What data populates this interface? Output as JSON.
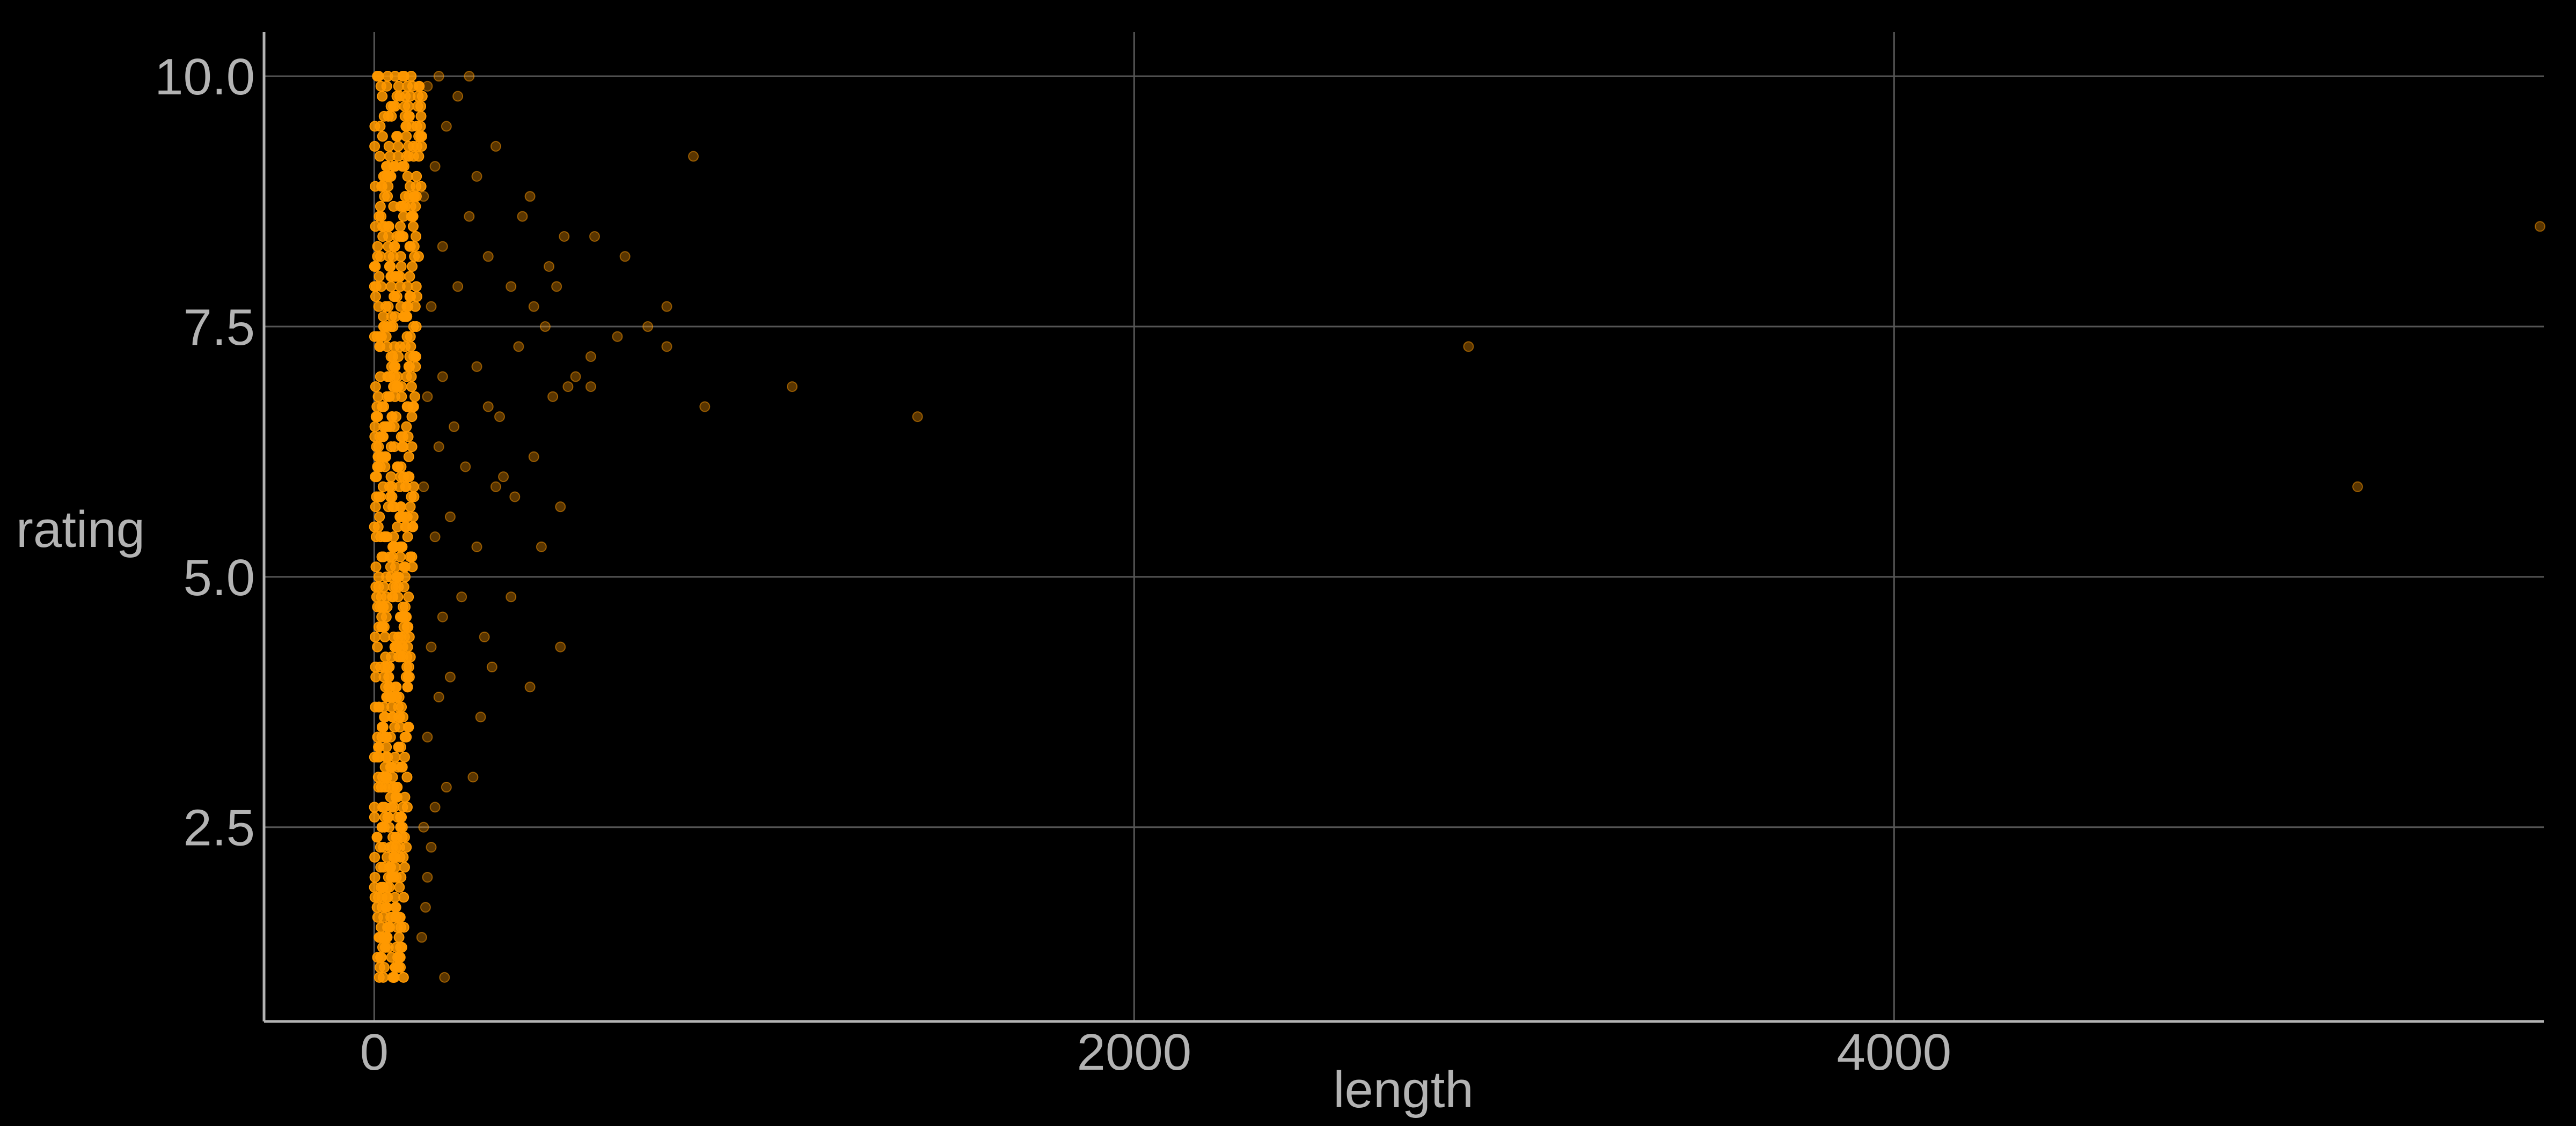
{
  "chart_data": {
    "type": "scatter",
    "title": "",
    "xlabel": "length",
    "ylabel": "rating",
    "xlim": [
      -290,
      5710
    ],
    "ylim": [
      0.56,
      10.44
    ],
    "x_ticks": [
      0,
      2000,
      4000
    ],
    "x_tick_labels": [
      "0",
      "2000",
      "4000"
    ],
    "y_ticks": [
      2.5,
      5.0,
      7.5,
      10.0
    ],
    "y_tick_labels": [
      "2.5",
      "5.0",
      "7.5",
      "10.0"
    ],
    "grid": true,
    "legend": "none",
    "colors": {
      "background": "#000000",
      "point": "#ff9900",
      "grid": "#555555",
      "axis_line": "#b3b3b3",
      "text": "#b3b3b3"
    },
    "dense_band": {
      "description_free": true,
      "x_range": [
        0,
        130
      ],
      "y_range": [
        1.0,
        10.0
      ],
      "y_step": 0.1
    },
    "points": [
      [
        5700,
        8.5
      ],
      [
        5220,
        5.9
      ],
      [
        2880,
        7.3
      ],
      [
        1430,
        6.6
      ],
      [
        1100,
        6.9
      ],
      [
        870,
        6.7
      ],
      [
        840,
        9.2
      ],
      [
        770,
        7.7
      ],
      [
        770,
        7.3
      ],
      [
        720,
        7.5
      ],
      [
        660,
        8.2
      ],
      [
        640,
        7.4
      ],
      [
        580,
        8.4
      ],
      [
        570,
        7.2
      ],
      [
        570,
        6.9
      ],
      [
        530,
        7.0
      ],
      [
        510,
        6.9
      ],
      [
        490,
        5.7
      ],
      [
        490,
        4.3
      ],
      [
        500,
        8.4
      ],
      [
        480,
        7.9
      ],
      [
        470,
        6.8
      ],
      [
        460,
        8.1
      ],
      [
        450,
        7.5
      ],
      [
        440,
        5.3
      ],
      [
        410,
        3.9
      ],
      [
        420,
        6.2
      ],
      [
        420,
        7.7
      ],
      [
        410,
        8.8
      ],
      [
        390,
        8.6
      ],
      [
        380,
        7.3
      ],
      [
        370,
        5.8
      ],
      [
        360,
        7.9
      ],
      [
        360,
        4.8
      ],
      [
        340,
        6.0
      ],
      [
        330,
        6.6
      ],
      [
        320,
        9.3
      ],
      [
        320,
        5.9
      ],
      [
        310,
        4.1
      ],
      [
        300,
        8.2
      ],
      [
        300,
        6.7
      ],
      [
        290,
        4.4
      ],
      [
        280,
        3.6
      ],
      [
        270,
        9.0
      ],
      [
        270,
        7.1
      ],
      [
        270,
        5.3
      ],
      [
        260,
        3.0
      ],
      [
        250,
        10.0
      ],
      [
        250,
        8.6
      ],
      [
        240,
        6.1
      ],
      [
        230,
        4.8
      ],
      [
        220,
        9.8
      ],
      [
        220,
        7.9
      ],
      [
        210,
        6.5
      ],
      [
        200,
        5.6
      ],
      [
        200,
        4.0
      ],
      [
        190,
        2.9
      ],
      [
        190,
        9.5
      ],
      [
        180,
        8.3
      ],
      [
        180,
        7.0
      ],
      [
        180,
        4.6
      ],
      [
        170,
        10.0
      ],
      [
        170,
        6.3
      ],
      [
        170,
        3.8
      ],
      [
        160,
        9.1
      ],
      [
        160,
        5.4
      ],
      [
        160,
        2.7
      ],
      [
        150,
        7.7
      ],
      [
        150,
        4.3
      ],
      [
        150,
        2.3
      ],
      [
        140,
        9.9
      ],
      [
        140,
        6.8
      ],
      [
        140,
        3.4
      ],
      [
        140,
        2.0
      ],
      [
        135,
        1.7
      ],
      [
        130,
        8.8
      ],
      [
        130,
        5.9
      ],
      [
        130,
        2.5
      ],
      [
        125,
        1.4
      ],
      [
        185,
        1.0
      ]
    ]
  }
}
